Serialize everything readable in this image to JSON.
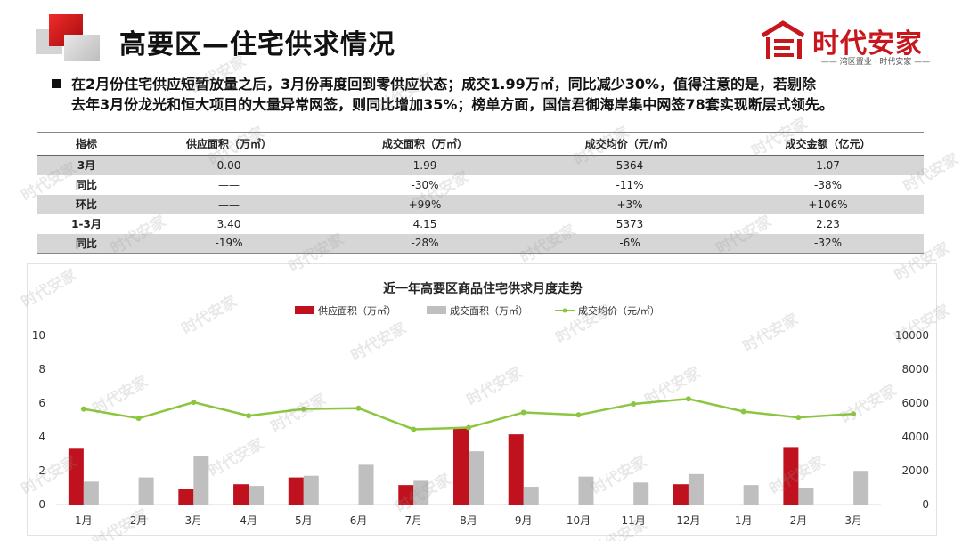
{
  "header": {
    "title": "高要区—住宅供求情况",
    "brand_name": "时代安家",
    "brand_slogan": "—— 湾区置业 · 时代安家 ——"
  },
  "summary": {
    "line1": "在2月份住宅供应短暂放量之后，3月份再度回到零供应状态；成交1.99万㎡，同比减少30%，值得注意的是，若剔除",
    "line2": "去年3月份龙光和恒大项目的大量异常网签，则同比增加35%；榜单方面，国信君御海岸集中网签78套实现断层式领先。"
  },
  "table": {
    "headers": [
      "指标",
      "供应面积（万㎡）",
      "成交面积（万㎡）",
      "成交均价（元/㎡）",
      "成交金额（亿元）"
    ],
    "rows": [
      {
        "label": "3月",
        "cells": [
          "0.00",
          "1.99",
          "5364",
          "1.07"
        ],
        "shade": true
      },
      {
        "label": "同比",
        "cells": [
          "——",
          "-30%",
          "-11%",
          "-38%"
        ],
        "shade": false
      },
      {
        "label": "环比",
        "cells": [
          "——",
          "+99%",
          "+3%",
          "+106%"
        ],
        "shade": true
      },
      {
        "label": "1-3月",
        "cells": [
          "3.40",
          "4.15",
          "5373",
          "2.23"
        ],
        "shade": false
      },
      {
        "label": "同比",
        "cells": [
          "-19%",
          "-28%",
          "-6%",
          "-32%"
        ],
        "shade": true
      }
    ]
  },
  "chart_data": {
    "type": "bar",
    "title": "近一年高要区商品住宅供求月度走势",
    "categories": [
      "1月",
      "2月",
      "3月",
      "4月",
      "5月",
      "6月",
      "7月",
      "8月",
      "9月",
      "10月",
      "11月",
      "12月",
      "1月",
      "2月",
      "3月"
    ],
    "series": [
      {
        "name": "供应面积（万㎡）",
        "type": "bar",
        "axis": "left",
        "color": "#c0111f",
        "values": [
          3.3,
          0,
          0.9,
          1.2,
          1.6,
          0,
          1.15,
          4.5,
          4.15,
          0,
          0,
          1.2,
          0,
          3.4,
          0
        ]
      },
      {
        "name": "成交面积（万㎡）",
        "type": "bar",
        "axis": "left",
        "color": "#bfbfbf",
        "values": [
          1.35,
          1.6,
          2.85,
          1.1,
          1.7,
          2.35,
          1.4,
          3.15,
          1.05,
          1.65,
          1.3,
          1.8,
          1.15,
          1.0,
          1.99
        ]
      },
      {
        "name": "成交均价（元/㎡）",
        "type": "line",
        "axis": "right",
        "color": "#8cc63f",
        "values": [
          5650,
          5100,
          6050,
          5250,
          5650,
          5700,
          4450,
          4550,
          5450,
          5300,
          5950,
          6250,
          5500,
          5150,
          5364
        ]
      }
    ],
    "y_left": {
      "min": 0,
      "max": 10,
      "ticks": [
        "0",
        "2",
        "4",
        "6",
        "8",
        "10"
      ]
    },
    "y_right": {
      "min": 0,
      "max": 10000,
      "ticks": [
        "0",
        "2000",
        "4000",
        "6000",
        "8000",
        "10000"
      ]
    },
    "legend_position": "top",
    "grid": false
  },
  "watermark_text": "时代安家",
  "colors": {
    "brand_red": "#c8161d",
    "supply": "#c0111f",
    "deal": "#bfbfbf",
    "price": "#8cc63f"
  }
}
